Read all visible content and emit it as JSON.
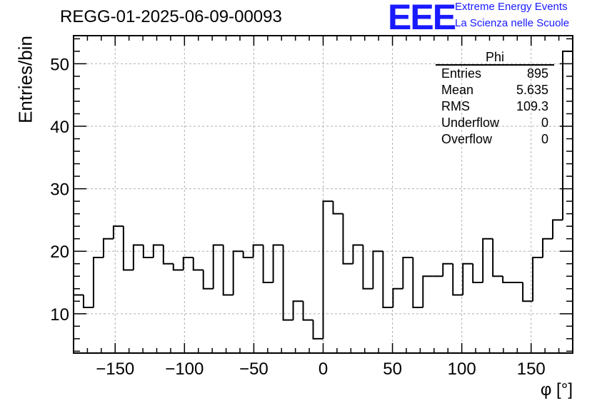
{
  "title": "REGG-01-2025-06-09-00093",
  "logo": {
    "text": "EEE",
    "line1": "Extreme Energy Events",
    "line2": "La Scienza nelle Scuole",
    "color": "#1a1aff"
  },
  "stats": {
    "title": "Phi",
    "rows": [
      {
        "label": "Entries",
        "value": "895"
      },
      {
        "label": "Mean",
        "value": "5.635"
      },
      {
        "label": "RMS",
        "value": "109.3"
      },
      {
        "label": "Underflow",
        "value": "0"
      },
      {
        "label": "Overflow",
        "value": "0"
      }
    ]
  },
  "chart_data": {
    "type": "histogram",
    "title": "REGG-01-2025-06-09-00093",
    "xlabel": "φ [°]",
    "ylabel": "Entries/bin",
    "xlim": [
      -180,
      180
    ],
    "ylim": [
      3.7,
      54.5
    ],
    "bin_width": 7.2,
    "xticks": [
      -150,
      -100,
      -50,
      0,
      50,
      100,
      150
    ],
    "xtick_labels": [
      "−150",
      "−100",
      "−50",
      "0",
      "50",
      "100",
      "150"
    ],
    "yticks": [
      10,
      20,
      30,
      40,
      50
    ],
    "ytick_labels": [
      "10",
      "20",
      "30",
      "40",
      "50"
    ],
    "grid": true,
    "values": [
      13,
      11,
      19,
      22,
      24,
      17,
      21,
      19,
      21,
      18,
      17,
      19,
      17,
      14,
      21,
      13,
      20,
      19,
      21,
      15,
      21,
      9,
      12,
      9,
      6,
      28,
      26,
      18,
      21,
      14,
      20,
      11,
      14,
      19,
      11,
      16,
      16,
      18,
      13,
      18,
      15,
      22,
      16,
      15,
      15,
      12,
      19,
      22,
      25,
      52
    ],
    "line_color": "#000000"
  }
}
